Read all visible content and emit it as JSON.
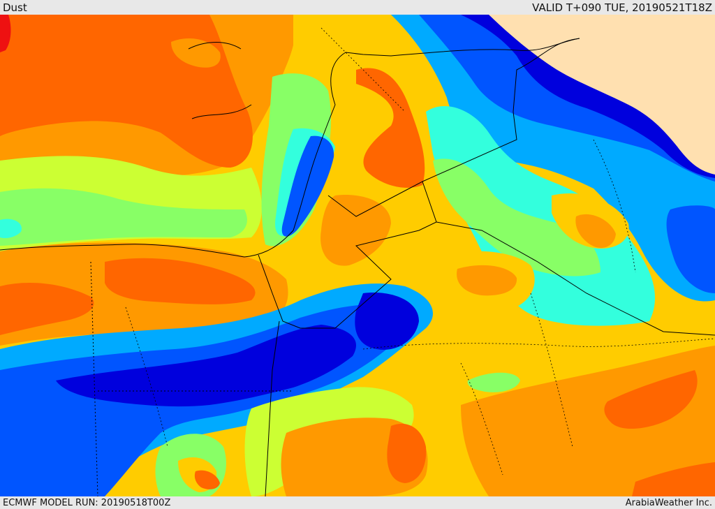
{
  "header": {
    "field_name": "Dust",
    "valid_time": "VALID T+090 TUE, 20190521T18Z"
  },
  "footer": {
    "model_run": "ECMWF MODEL RUN: 20190518T00Z",
    "credit": "ArabiaWeather Inc."
  },
  "palette": {
    "background_land": "#ffe0b0",
    "dark_blue": "#0000dd",
    "blue": "#0055ff",
    "light_blue": "#00aaff",
    "cyan": "#33ffdd",
    "green": "#88ff66",
    "yellow_green": "#ccff33",
    "yellow": "#ffcc00",
    "orange": "#ff9900",
    "dark_orange": "#ff6600",
    "red": "#ee1111"
  }
}
